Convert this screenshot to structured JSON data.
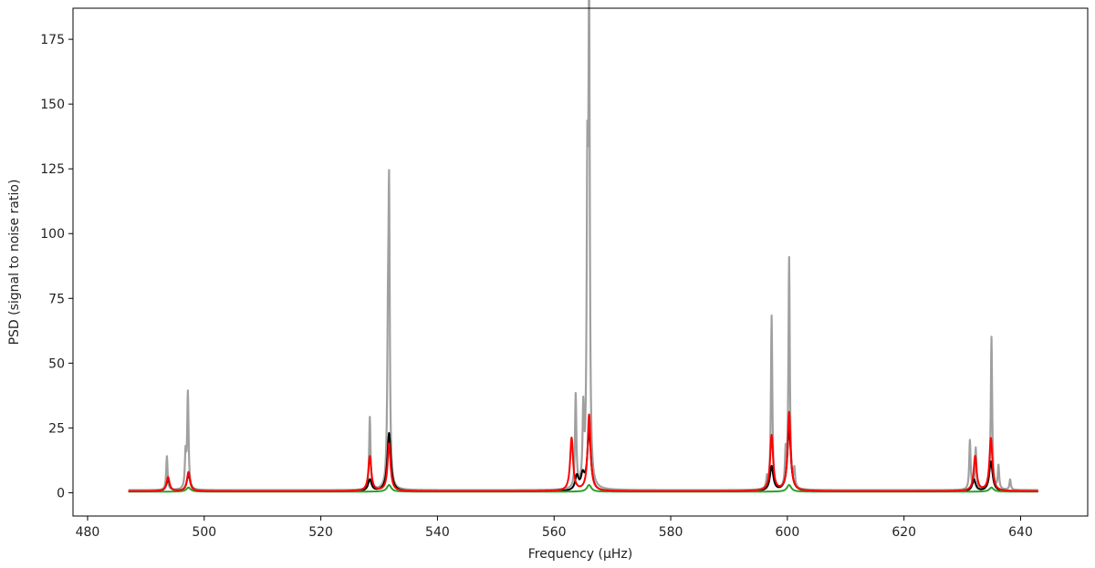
{
  "chart_data": {
    "type": "line",
    "title": "",
    "xlabel": "Frequency (μHz)",
    "ylabel": "PSD (signal to noise ratio)",
    "xlim": [
      477.5,
      651.5
    ],
    "ylim": [
      -9,
      187
    ],
    "x_ticks": [
      480,
      500,
      520,
      540,
      560,
      580,
      600,
      620,
      640
    ],
    "y_ticks": [
      0,
      25,
      50,
      75,
      100,
      125,
      150,
      175
    ],
    "x_range": [
      487,
      643
    ],
    "grid": false,
    "legend": "none",
    "series": [
      {
        "color": "#a0a0a0",
        "baseline": 1.0,
        "peaks": [
          {
            "x": 493.6,
            "y": 14
          },
          {
            "x": 496.8,
            "y": 14
          },
          {
            "x": 497.2,
            "y": 38
          },
          {
            "x": 528.4,
            "y": 29
          },
          {
            "x": 531.5,
            "y": 45
          },
          {
            "x": 531.7,
            "y": 110
          },
          {
            "x": 563.7,
            "y": 37
          },
          {
            "x": 565.0,
            "y": 29
          },
          {
            "x": 565.7,
            "y": 110
          },
          {
            "x": 566.0,
            "y": 182
          },
          {
            "x": 596.5,
            "y": 5
          },
          {
            "x": 597.3,
            "y": 68
          },
          {
            "x": 599.7,
            "y": 14
          },
          {
            "x": 600.3,
            "y": 90
          },
          {
            "x": 601.2,
            "y": 8
          },
          {
            "x": 631.3,
            "y": 20
          },
          {
            "x": 632.3,
            "y": 17
          },
          {
            "x": 635.0,
            "y": 60
          },
          {
            "x": 636.2,
            "y": 10
          },
          {
            "x": 638.2,
            "y": 5
          }
        ]
      },
      {
        "color": "#000000",
        "baseline": 0.5,
        "peaks": [
          {
            "x": 493.8,
            "y": 5
          },
          {
            "x": 497.3,
            "y": 7
          },
          {
            "x": 528.4,
            "y": 5
          },
          {
            "x": 531.7,
            "y": 23
          },
          {
            "x": 563.9,
            "y": 6
          },
          {
            "x": 564.9,
            "y": 6
          },
          {
            "x": 566.0,
            "y": 24
          },
          {
            "x": 597.3,
            "y": 10
          },
          {
            "x": 600.3,
            "y": 25
          },
          {
            "x": 632.0,
            "y": 5
          },
          {
            "x": 634.9,
            "y": 12
          }
        ]
      },
      {
        "color": "#2ca02c",
        "baseline": 0.4,
        "peaks": [
          {
            "x": 497.3,
            "y": 2
          },
          {
            "x": 531.7,
            "y": 3
          },
          {
            "x": 566.0,
            "y": 3
          },
          {
            "x": 600.3,
            "y": 3
          },
          {
            "x": 635.0,
            "y": 2
          }
        ]
      },
      {
        "color": "#ff0000",
        "baseline": 0.6,
        "peaks": [
          {
            "x": 493.8,
            "y": 6
          },
          {
            "x": 497.3,
            "y": 8
          },
          {
            "x": 528.4,
            "y": 14
          },
          {
            "x": 531.7,
            "y": 19
          },
          {
            "x": 563.0,
            "y": 21
          },
          {
            "x": 566.0,
            "y": 30
          },
          {
            "x": 597.3,
            "y": 22
          },
          {
            "x": 600.3,
            "y": 31
          },
          {
            "x": 632.2,
            "y": 14
          },
          {
            "x": 634.9,
            "y": 21
          }
        ]
      }
    ]
  }
}
